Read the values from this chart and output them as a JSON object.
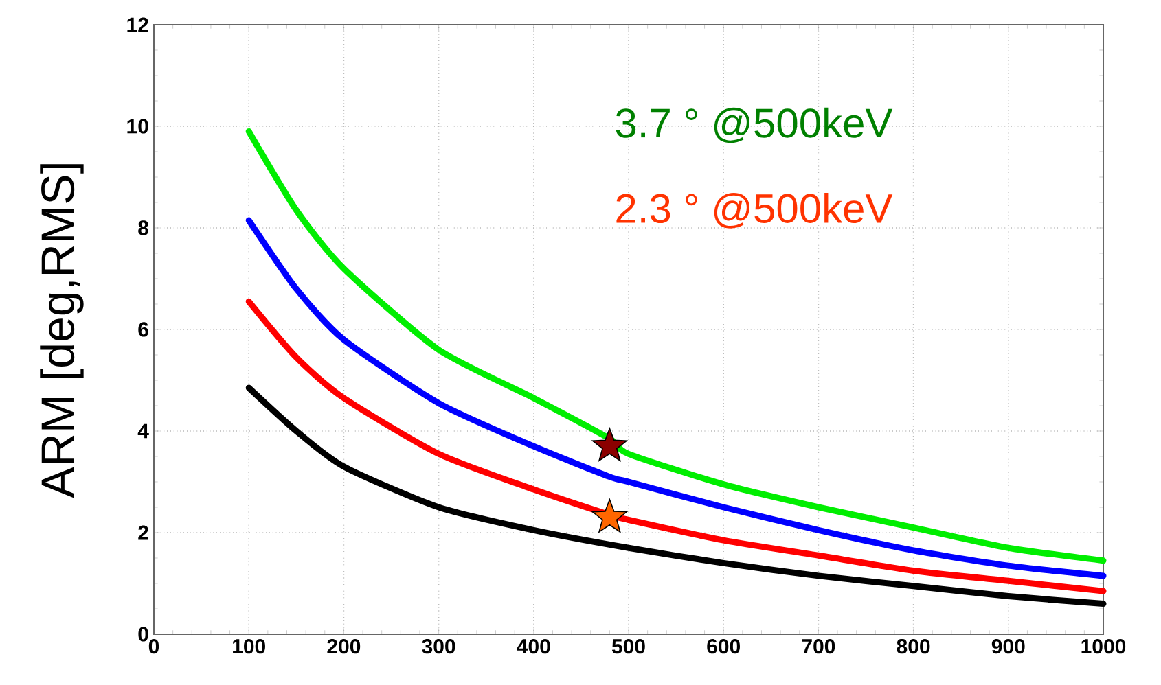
{
  "chart_data": {
    "type": "line",
    "ylabel": "ARM [deg,RMS]",
    "xlim": [
      0,
      1000
    ],
    "ylim": [
      0,
      12
    ],
    "xticks": [
      0,
      100,
      200,
      300,
      400,
      500,
      600,
      700,
      800,
      900,
      1000
    ],
    "yticks": [
      0,
      2,
      4,
      6,
      8,
      10,
      12
    ],
    "grid": true,
    "annotations": [
      "3.7 ° @500keV",
      "2.3 ° @500keV"
    ],
    "series": [
      {
        "color": "#00ee00",
        "x": [
          100,
          150,
          200,
          300,
          400,
          480,
          500,
          600,
          700,
          800,
          900,
          1000
        ],
        "values": [
          9.9,
          8.35,
          7.2,
          5.6,
          4.65,
          3.85,
          3.55,
          2.95,
          2.5,
          2.1,
          1.7,
          1.45
        ]
      },
      {
        "color": "#0000ff",
        "x": [
          100,
          150,
          200,
          300,
          400,
          480,
          500,
          600,
          700,
          800,
          900,
          1000
        ],
        "values": [
          8.15,
          6.8,
          5.8,
          4.55,
          3.7,
          3.1,
          3.0,
          2.5,
          2.05,
          1.65,
          1.35,
          1.15
        ]
      },
      {
        "color": "#ff0000",
        "x": [
          100,
          150,
          200,
          300,
          400,
          480,
          500,
          600,
          700,
          800,
          900,
          1000
        ],
        "values": [
          6.55,
          5.45,
          4.65,
          3.55,
          2.85,
          2.35,
          2.25,
          1.85,
          1.55,
          1.25,
          1.05,
          0.85
        ]
      },
      {
        "color": "#000000",
        "x": [
          100,
          150,
          200,
          300,
          400,
          500,
          600,
          700,
          800,
          900,
          1000
        ],
        "values": [
          4.85,
          4.0,
          3.3,
          2.5,
          2.05,
          1.7,
          1.4,
          1.15,
          0.95,
          0.75,
          0.6
        ]
      },
      {
        "type": "scatter",
        "marker": "star",
        "color": "#8b0000",
        "x": [
          480
        ],
        "values": [
          3.7
        ]
      },
      {
        "type": "scatter",
        "marker": "star",
        "color": "#ff6600",
        "x": [
          480
        ],
        "values": [
          2.3
        ]
      }
    ]
  }
}
